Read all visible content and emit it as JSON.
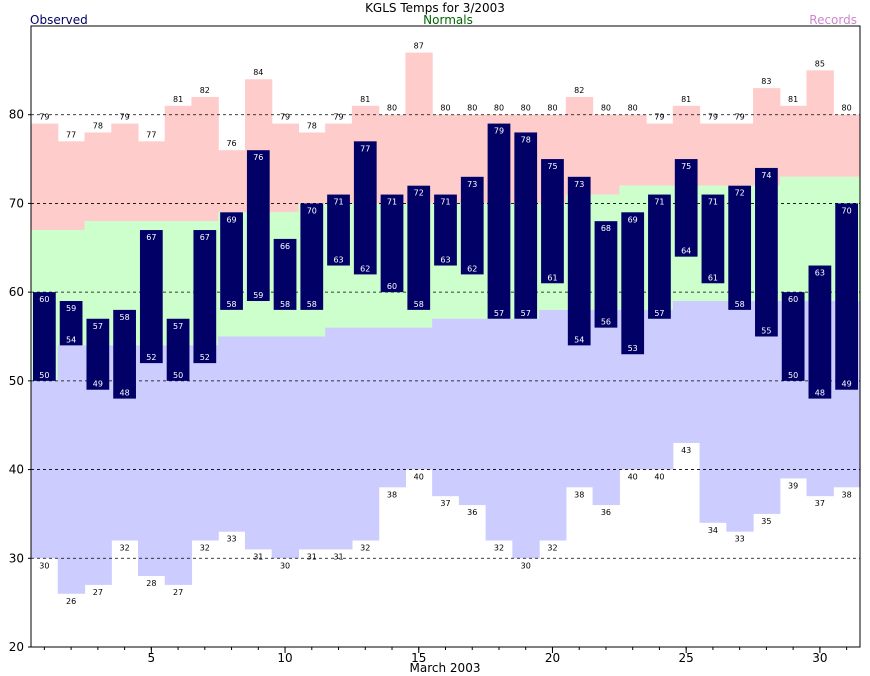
{
  "chart_data": {
    "type": "bar",
    "title": "KGLS Temps for 3/2003",
    "xlabel": "March 2003",
    "ylabel": "",
    "legend": {
      "observed": "Observed",
      "normals": "Normals",
      "records": "Records"
    },
    "colors": {
      "observed": "#000066",
      "normals": "#ccffcc",
      "record_high": "#ffcccc",
      "record_low": "#ccccff",
      "legend_observed": "#000066",
      "legend_normals": "#006600",
      "legend_records": "#cc88cc"
    },
    "ylim": [
      20,
      90
    ],
    "yticks": [
      20,
      30,
      40,
      50,
      60,
      70,
      80
    ],
    "dashed_grid_at": [
      30,
      40,
      50,
      60,
      70,
      80
    ],
    "xlim": [
      1,
      31
    ],
    "xticks": [
      5,
      10,
      15,
      20,
      25,
      30
    ],
    "days": [
      1,
      2,
      3,
      4,
      5,
      6,
      7,
      8,
      9,
      10,
      11,
      12,
      13,
      14,
      15,
      16,
      17,
      18,
      19,
      20,
      21,
      22,
      23,
      24,
      25,
      26,
      27,
      28,
      29,
      30,
      31
    ],
    "record_high": [
      79,
      77,
      78,
      79,
      77,
      81,
      82,
      76,
      84,
      79,
      78,
      79,
      81,
      80,
      87,
      80,
      80,
      80,
      80,
      80,
      82,
      80,
      80,
      79,
      81,
      79,
      79,
      83,
      81,
      85,
      80
    ],
    "record_low": [
      30,
      26,
      27,
      32,
      28,
      27,
      32,
      33,
      31,
      30,
      31,
      31,
      32,
      38,
      40,
      37,
      36,
      32,
      30,
      32,
      38,
      36,
      40,
      40,
      43,
      34,
      33,
      35,
      39,
      37,
      38
    ],
    "normal_high": [
      67,
      67,
      68,
      68,
      68,
      68,
      68,
      69,
      69,
      69,
      70,
      70,
      70,
      70,
      70,
      70,
      70,
      70,
      70,
      70,
      71,
      71,
      72,
      72,
      72,
      72,
      72,
      72,
      73,
      73,
      73
    ],
    "normal_low": [
      50,
      54,
      54,
      54,
      54,
      54,
      54,
      55,
      55,
      55,
      55,
      56,
      56,
      56,
      56,
      57,
      57,
      57,
      57,
      58,
      58,
      58,
      58,
      58,
      59,
      59,
      59,
      59,
      59,
      59,
      59
    ],
    "observed_high": [
      60,
      59,
      57,
      58,
      67,
      57,
      67,
      69,
      76,
      66,
      70,
      71,
      77,
      71,
      72,
      71,
      73,
      79,
      78,
      75,
      73,
      68,
      69,
      71,
      75,
      71,
      72,
      74,
      60,
      63,
      70
    ],
    "observed_low": [
      50,
      54,
      49,
      48,
      52,
      50,
      52,
      58,
      59,
      58,
      58,
      63,
      62,
      60,
      58,
      63,
      62,
      57,
      57,
      61,
      54,
      56,
      53,
      57,
      64,
      61,
      58,
      55,
      50,
      48,
      49
    ]
  }
}
